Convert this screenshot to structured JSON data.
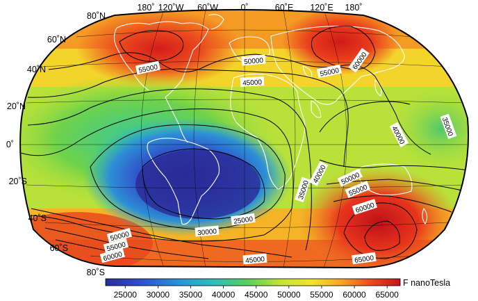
{
  "map": {
    "projection": "Winkel Tripel (world)",
    "quantity_label": "F nanoTesla",
    "lon_labels": [
      "180˚",
      "120˚W",
      "60˚W",
      "0˚",
      "60˚E",
      "120˚E",
      "180˚"
    ],
    "lat_labels": [
      "80˚N",
      "60˚N",
      "40˚N",
      "20˚N",
      "0˚",
      "20˚S",
      "40˚S",
      "60˚S",
      "80˚S"
    ],
    "contour_labels": [
      "55000",
      "50000",
      "45000",
      "55000",
      "60000",
      "35000",
      "40000",
      "40000",
      "50000",
      "35000",
      "55000",
      "60000",
      "25000",
      "30000",
      "50000",
      "55000",
      "60000",
      "45000",
      "65000"
    ],
    "colorbar": {
      "ticks": [
        "25000",
        "30000",
        "35000",
        "40000",
        "45000",
        "50000",
        "55000",
        "60000",
        "65000"
      ],
      "range": [
        22000,
        67000
      ],
      "colors": [
        "#2a2b9a",
        "#2f63d9",
        "#27a6d8",
        "#38c79a",
        "#7ad63f",
        "#e9ef2a",
        "#f6a524",
        "#ec4a1e",
        "#c4141a"
      ]
    },
    "colors": {
      "coastline": "#ffffff",
      "contour": "#000000",
      "graticule": "#000000"
    }
  }
}
